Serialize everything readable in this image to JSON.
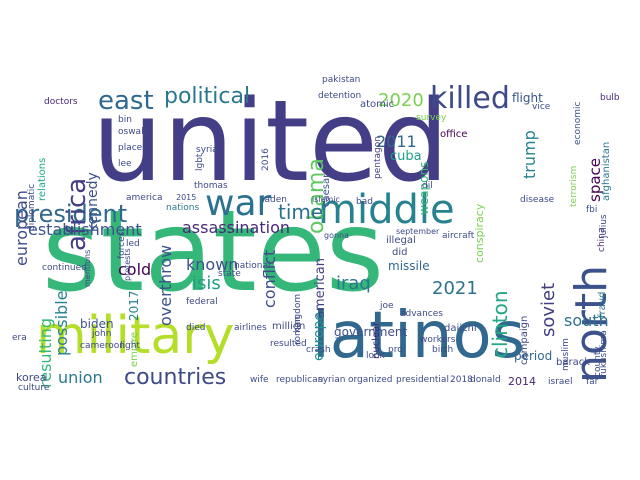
{
  "word_cloud": {
    "words": [
      {
        "key": "united",
        "text": "united",
        "color": "#433e85"
      },
      {
        "key": "states",
        "text": "states",
        "color": "#35b779"
      },
      {
        "key": "military",
        "text": "military",
        "color": "#b5de2b"
      },
      {
        "key": "latinos",
        "text": "latinos",
        "color": "#31688e"
      },
      {
        "key": "middle",
        "text": "middle",
        "color": "#26828e"
      },
      {
        "key": "war",
        "text": "war",
        "color": "#2c728e"
      },
      {
        "key": "north",
        "text": "north",
        "color": "#3b528b"
      },
      {
        "key": "killed",
        "text": "killed",
        "color": "#3e4a89"
      },
      {
        "key": "president",
        "text": "president",
        "color": "#31688e"
      },
      {
        "key": "africa",
        "text": "africa",
        "color": "#433e85"
      },
      {
        "key": "east",
        "text": "east",
        "color": "#31688e"
      },
      {
        "key": "political",
        "text": "political",
        "color": "#2a788e"
      },
      {
        "key": "obama",
        "text": "obama",
        "color": "#5ec962"
      },
      {
        "key": "countries",
        "text": "countries",
        "color": "#3e4a89"
      },
      {
        "key": "time",
        "text": "time",
        "color": "#2c728e"
      },
      {
        "key": "establishment",
        "text": "establishment",
        "color": "#3b528b"
      },
      {
        "key": "assassination",
        "text": "assassination",
        "color": "#482878"
      },
      {
        "key": "2020",
        "text": "2020",
        "color": "#7ad151"
      },
      {
        "key": "2021",
        "text": "2021",
        "color": "#2c728e"
      },
      {
        "key": "2011",
        "text": "2011",
        "color": "#31688e"
      },
      {
        "key": "trump",
        "text": "trump",
        "color": "#26828e"
      },
      {
        "key": "european",
        "text": "european",
        "color": "#3e4a89"
      },
      {
        "key": "kennedy",
        "text": "kennedy",
        "color": "#3b528b"
      },
      {
        "key": "possible",
        "text": "possible",
        "color": "#26828e"
      },
      {
        "key": "resulting",
        "text": "resulting",
        "color": "#35b779"
      },
      {
        "key": "cold",
        "text": "cold",
        "color": "#440154"
      },
      {
        "key": "known",
        "text": "known",
        "color": "#3b528b"
      },
      {
        "key": "isis",
        "text": "isis",
        "color": "#1f9e89"
      },
      {
        "key": "iraq",
        "text": "iraq",
        "color": "#2a788e"
      },
      {
        "key": "clinton",
        "text": "clinton",
        "color": "#22a884"
      },
      {
        "key": "soviet",
        "text": "soviet",
        "color": "#433e85"
      },
      {
        "key": "south",
        "text": "south",
        "color": "#2c728e"
      },
      {
        "key": "union",
        "text": "union",
        "color": "#2a788e"
      },
      {
        "key": "overthrow",
        "text": "overthrow",
        "color": "#3b528b"
      },
      {
        "key": "conflict",
        "text": "conflict",
        "color": "#3e4a89"
      },
      {
        "key": "american",
        "text": "american",
        "color": "#433e85"
      },
      {
        "key": "europe",
        "text": "europe",
        "color": "#21918c"
      },
      {
        "key": "space",
        "text": "space",
        "color": "#440154"
      },
      {
        "key": "government",
        "text": "government",
        "color": "#3b528b"
      },
      {
        "key": "period",
        "text": "period",
        "color": "#31688e"
      },
      {
        "key": "missile",
        "text": "missile",
        "color": "#31688e"
      },
      {
        "key": "biden",
        "text": "biden",
        "color": "#3b528b"
      },
      {
        "key": "cuba",
        "text": "cuba",
        "color": "#1f9e89"
      },
      {
        "key": "korea",
        "text": "korea",
        "color": "#3e4a89"
      },
      {
        "key": "2017",
        "text": "2017",
        "color": "#26828e"
      },
      {
        "key": "2014",
        "text": "2014",
        "color": "#482878"
      },
      {
        "key": "conspiracy",
        "text": "conspiracy",
        "color": "#7ad151"
      },
      {
        "key": "weapons",
        "text": "weapons",
        "color": "#35b779"
      },
      {
        "key": "flight",
        "text": "flight",
        "color": "#3b528b"
      },
      {
        "key": "caesar",
        "text": "caesar",
        "color": "#3b528b"
      },
      {
        "key": "empire",
        "text": "empire",
        "color": "#7ad151"
      },
      {
        "key": "campaign",
        "text": "campaign",
        "color": "#3e4a89"
      },
      {
        "key": "nuclear",
        "text": "nuclear",
        "color": "#482878"
      },
      {
        "key": "fraud",
        "text": "fraud",
        "color": "#2a788e"
      },
      {
        "key": "china",
        "text": "china",
        "color": "#482878"
      },
      {
        "key": "julius",
        "text": "julius",
        "color": "#3e4a89"
      },
      {
        "key": "fbi",
        "text": "fbi",
        "color": "#3b528b"
      },
      {
        "key": "barack",
        "text": "barack",
        "color": "#3e4a89"
      },
      {
        "key": "afghanistan",
        "text": "afghanistan",
        "color": "#2a788e"
      },
      {
        "key": "terrorism",
        "text": "terrorism",
        "color": "#7ad151"
      },
      {
        "key": "economic",
        "text": "economic",
        "color": "#3b528b"
      },
      {
        "key": "bulb",
        "text": "bulb",
        "color": "#482878"
      },
      {
        "key": "vice",
        "text": "vice",
        "color": "#3e4a89"
      },
      {
        "key": "office",
        "text": "office",
        "color": "#440154"
      },
      {
        "key": "pakistan",
        "text": "pakistan",
        "color": "#3e4a89"
      },
      {
        "key": "detention",
        "text": "detention",
        "color": "#3e4a89"
      },
      {
        "key": "atomic",
        "text": "atomic",
        "color": "#3e4a89"
      },
      {
        "key": "pentagon",
        "text": "pentagon",
        "color": "#433e85"
      },
      {
        "key": "survey",
        "text": "survey",
        "color": "#7ad151"
      },
      {
        "key": "doctors",
        "text": "doctors",
        "color": "#482878"
      },
      {
        "key": "relations",
        "text": "relations",
        "color": "#22a884"
      },
      {
        "key": "oswald",
        "text": "oswald",
        "color": "#3e4a89"
      },
      {
        "key": "places",
        "text": "places",
        "color": "#3e4a89"
      },
      {
        "key": "lee",
        "text": "lee",
        "color": "#3e4a89"
      },
      {
        "key": "bin",
        "text": "bin",
        "color": "#3e4a89"
      },
      {
        "key": "lgbt",
        "text": "lgbt",
        "color": "#3e4a89"
      },
      {
        "key": "thomas",
        "text": "thomas",
        "color": "#3e4a89"
      },
      {
        "key": "2016",
        "text": "2016",
        "color": "#3e4a89"
      },
      {
        "key": "diplomatic",
        "text": "diplomatic",
        "color": "#3e4a89"
      },
      {
        "key": "america",
        "text": "america",
        "color": "#3e4a89"
      },
      {
        "key": "nations",
        "text": "nations",
        "color": "#2a788e"
      },
      {
        "key": "bad",
        "text": "bad",
        "color": "#3e4a89"
      },
      {
        "key": "disease",
        "text": "disease",
        "color": "#3e4a89"
      },
      {
        "key": "illegal",
        "text": "illegal",
        "color": "#3e4a89"
      },
      {
        "key": "aircraft",
        "text": "aircraft",
        "color": "#3e4a89"
      },
      {
        "key": "did",
        "text": "did",
        "color": "#3e4a89"
      },
      {
        "key": "led",
        "text": "led",
        "color": "#3e4a89"
      },
      {
        "key": "continued",
        "text": "continued",
        "color": "#3e4a89"
      },
      {
        "key": "national",
        "text": "national",
        "color": "#3e4a89"
      },
      {
        "key": "state",
        "text": "state",
        "color": "#3e4a89"
      },
      {
        "key": "federal",
        "text": "federal",
        "color": "#3e4a89"
      },
      {
        "key": "john",
        "text": "john",
        "color": "#3e4a89"
      },
      {
        "key": "light",
        "text": "light",
        "color": "#3e4a89"
      },
      {
        "key": "cameroon",
        "text": "cameroon",
        "color": "#3e4a89"
      },
      {
        "key": "forces",
        "text": "forces",
        "color": "#3e4a89"
      },
      {
        "key": "syria",
        "text": "syria",
        "color": "#3e4a89"
      },
      {
        "key": "died",
        "text": "died",
        "color": "#3e4a89"
      },
      {
        "key": "airlines",
        "text": "airlines",
        "color": "#3e4a89"
      },
      {
        "key": "million",
        "text": "million",
        "color": "#3e4a89"
      },
      {
        "key": "roman",
        "text": "roman",
        "color": "#3e4a89"
      },
      {
        "key": "kingdom",
        "text": "kingdom",
        "color": "#3e4a89"
      },
      {
        "key": "joe",
        "text": "joe",
        "color": "#3e4a89"
      },
      {
        "key": "advances",
        "text": "advances",
        "color": "#3e4a89"
      },
      {
        "key": "daiichi",
        "text": "daiichi",
        "color": "#3e4a89"
      },
      {
        "key": "workers",
        "text": "workers",
        "color": "#3e4a89"
      },
      {
        "key": "birth",
        "text": "birth",
        "color": "#3e4a89"
      },
      {
        "key": "muslim",
        "text": "muslim",
        "color": "#3e4a89"
      },
      {
        "key": "county",
        "text": "county",
        "color": "#3e4a89"
      },
      {
        "key": "fukushima",
        "text": "fukushima",
        "color": "#3e4a89"
      },
      {
        "key": "israel",
        "text": "israel",
        "color": "#3e4a89"
      },
      {
        "key": "far",
        "text": "far",
        "color": "#3e4a89"
      },
      {
        "key": "donald",
        "text": "donald",
        "color": "#3e4a89"
      },
      {
        "key": "2018",
        "text": "2018",
        "color": "#3e4a89"
      },
      {
        "key": "presidential",
        "text": "presidential",
        "color": "#3e4a89"
      },
      {
        "key": "organized",
        "text": "organized",
        "color": "#3e4a89"
      },
      {
        "key": "syrian",
        "text": "syrian",
        "color": "#3e4a89"
      },
      {
        "key": "republican",
        "text": "republican",
        "color": "#3e4a89"
      },
      {
        "key": "wife",
        "text": "wife",
        "color": "#3e4a89"
      },
      {
        "key": "culture",
        "text": "culture",
        "color": "#3e4a89"
      },
      {
        "key": "era",
        "text": "era",
        "color": "#3e4a89"
      },
      {
        "key": "look",
        "text": "look",
        "color": "#3e4a89"
      },
      {
        "key": "crash",
        "text": "crash",
        "color": "#3e4a89"
      },
      {
        "key": "resulted",
        "text": "resulted",
        "color": "#3e4a89"
      },
      {
        "key": "pro",
        "text": "pro",
        "color": "#3e4a89"
      },
      {
        "key": "dil",
        "text": "dil",
        "color": "#3e4a89"
      },
      {
        "key": "laden",
        "text": "laden",
        "color": "#3e4a89"
      },
      {
        "key": "islamic",
        "text": "islamic",
        "color": "#3e4a89"
      },
      {
        "key": "gonna",
        "text": "gonna",
        "color": "#3e4a89"
      },
      {
        "key": "september",
        "text": "september",
        "color": "#3e4a89"
      },
      {
        "key": "2015",
        "text": "2015",
        "color": "#3e4a89"
      },
      {
        "key": "protests",
        "text": "protests",
        "color": "#3e4a89"
      },
      {
        "key": "mentions",
        "text": "mentions",
        "color": "#3e4a89"
      }
    ],
    "vertical": [
      "africa",
      "obama",
      "north",
      "trump",
      "european",
      "kennedy",
      "possible",
      "resulting",
      "clinton",
      "soviet",
      "conspiracy",
      "weapons",
      "space",
      "fraud",
      "china",
      "julius",
      "afghanistan",
      "terrorism",
      "economic",
      "relations",
      "europe",
      "american",
      "caesar",
      "lgbt",
      "2016",
      "overthrow",
      "conflict",
      "empire",
      "pentagon",
      "campaign",
      "nuclear",
      "county",
      "fukushima",
      "muslim",
      "roman",
      "kingdom",
      "forces",
      "protests",
      "mentions",
      "diplomatic",
      "2017"
    ]
  }
}
